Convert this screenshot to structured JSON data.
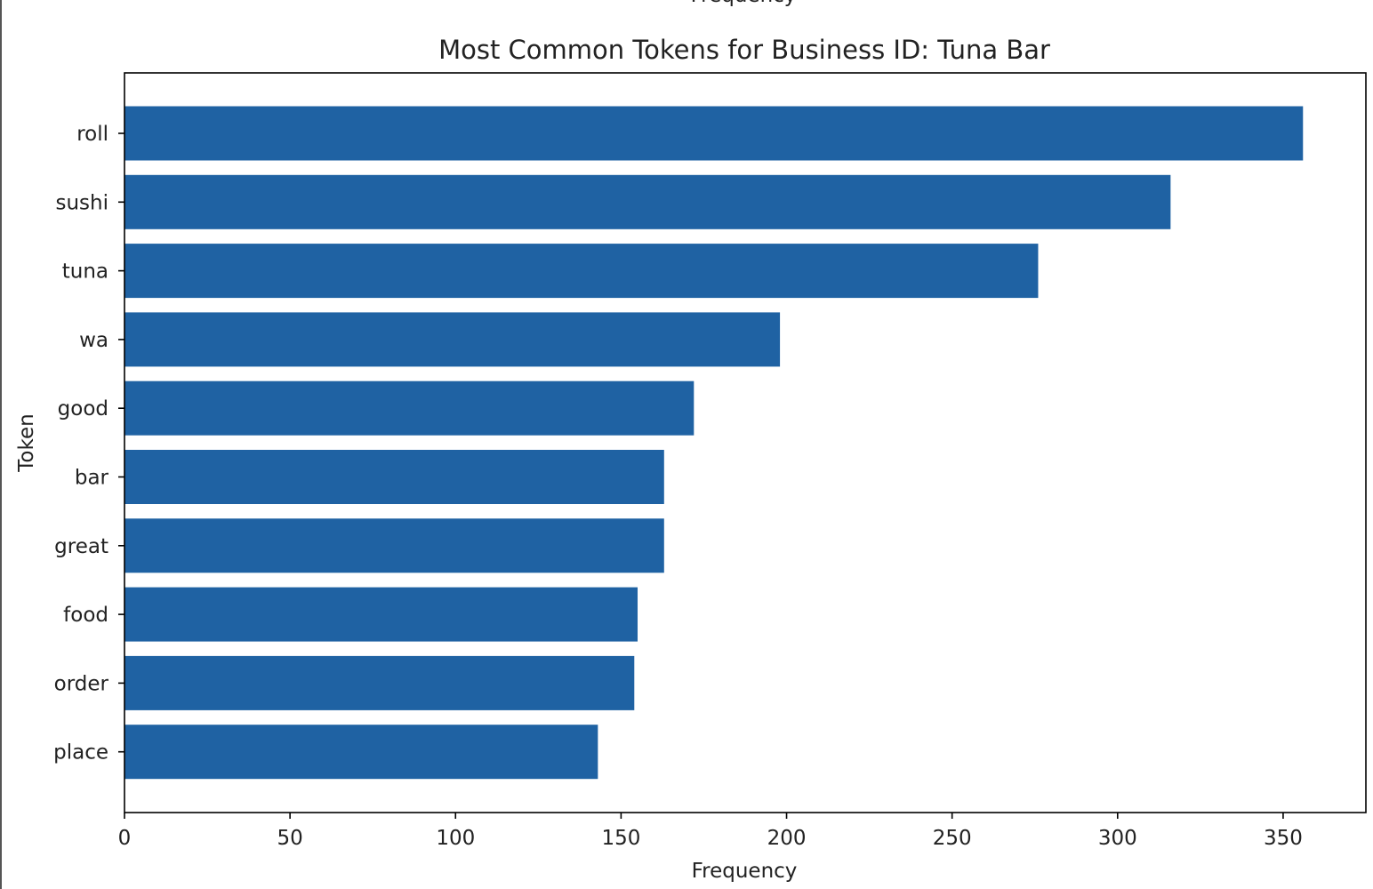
{
  "chart_data": {
    "type": "bar",
    "orientation": "horizontal",
    "title": "Most Common Tokens for Business ID: Tuna Bar",
    "xlabel": "Frequency",
    "ylabel": "Token",
    "top_clipped_label": "Frequency",
    "categories": [
      "roll",
      "sushi",
      "tuna",
      "wa",
      "good",
      "bar",
      "great",
      "food",
      "order",
      "place"
    ],
    "values": [
      356,
      316,
      276,
      198,
      172,
      163,
      163,
      155,
      154,
      143
    ],
    "xlim": [
      0,
      375
    ],
    "xticks": [
      0,
      50,
      100,
      150,
      200,
      250,
      300,
      350
    ],
    "bar_color": "#1f62a3",
    "grid": false,
    "legend": "none"
  }
}
